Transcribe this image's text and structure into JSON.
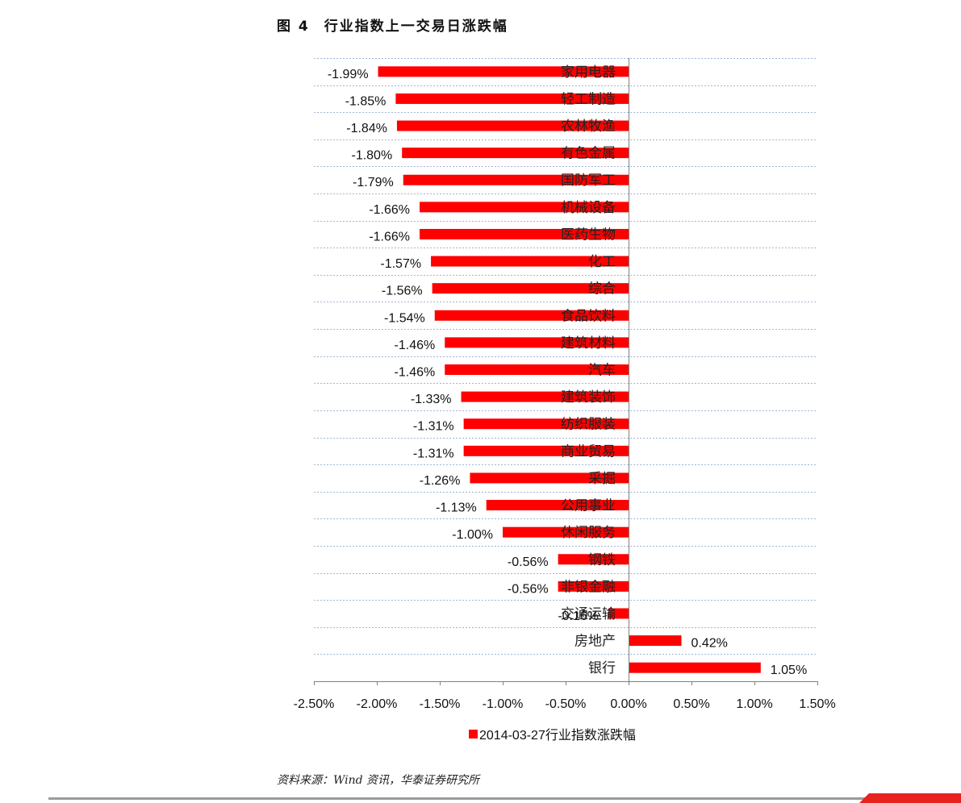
{
  "figure": {
    "label": "图 4",
    "title": "行业指数上一交易日涨跌幅"
  },
  "source": "资料来源：Wind 资讯，华泰证券研究所",
  "colors": {
    "bar": "#ff0000",
    "grid": "#9fb6d6",
    "axis": "#7f7f7f",
    "accent": "#e8221e"
  },
  "chart_data": {
    "type": "bar",
    "orientation": "horizontal",
    "categories": [
      "家用电器",
      "轻工制造",
      "农林牧渔",
      "有色金属",
      "国防军工",
      "机械设备",
      "医药生物",
      "化工",
      "综合",
      "食品饮料",
      "建筑材料",
      "汽车",
      "建筑装饰",
      "纺织服装",
      "商业贸易",
      "采掘",
      "公用事业",
      "休闲服务",
      "钢铁",
      "非银金融",
      "交通运输",
      "房地产",
      "银行"
    ],
    "series": [
      {
        "name": "2014-03-27行业指数涨跌幅",
        "values": [
          -1.99,
          -1.85,
          -1.84,
          -1.8,
          -1.79,
          -1.66,
          -1.66,
          -1.57,
          -1.56,
          -1.54,
          -1.46,
          -1.46,
          -1.33,
          -1.31,
          -1.31,
          -1.26,
          -1.13,
          -1.0,
          -0.56,
          -0.56,
          -0.16,
          0.42,
          1.05
        ],
        "labels": [
          "-1.99%",
          "-1.85%",
          "-1.84%",
          "-1.80%",
          "-1.79%",
          "-1.66%",
          "-1.66%",
          "-1.57%",
          "-1.56%",
          "-1.54%",
          "-1.46%",
          "-1.46%",
          "-1.33%",
          "-1.31%",
          "-1.31%",
          "-1.26%",
          "-1.13%",
          "-1.00%",
          "-0.56%",
          "-0.56%",
          "-0.16%",
          "0.42%",
          "1.05%"
        ]
      }
    ],
    "xlim": [
      -2.5,
      1.5
    ],
    "xticks": [
      -2.5,
      -2.0,
      -1.5,
      -1.0,
      -0.5,
      0.0,
      0.5,
      1.0,
      1.5
    ],
    "xtick_labels": [
      "-2.50%",
      "-2.00%",
      "-1.50%",
      "-1.00%",
      "-0.50%",
      "0.00%",
      "0.50%",
      "1.00%",
      "1.50%"
    ],
    "grid": true,
    "legend": "bottom"
  }
}
